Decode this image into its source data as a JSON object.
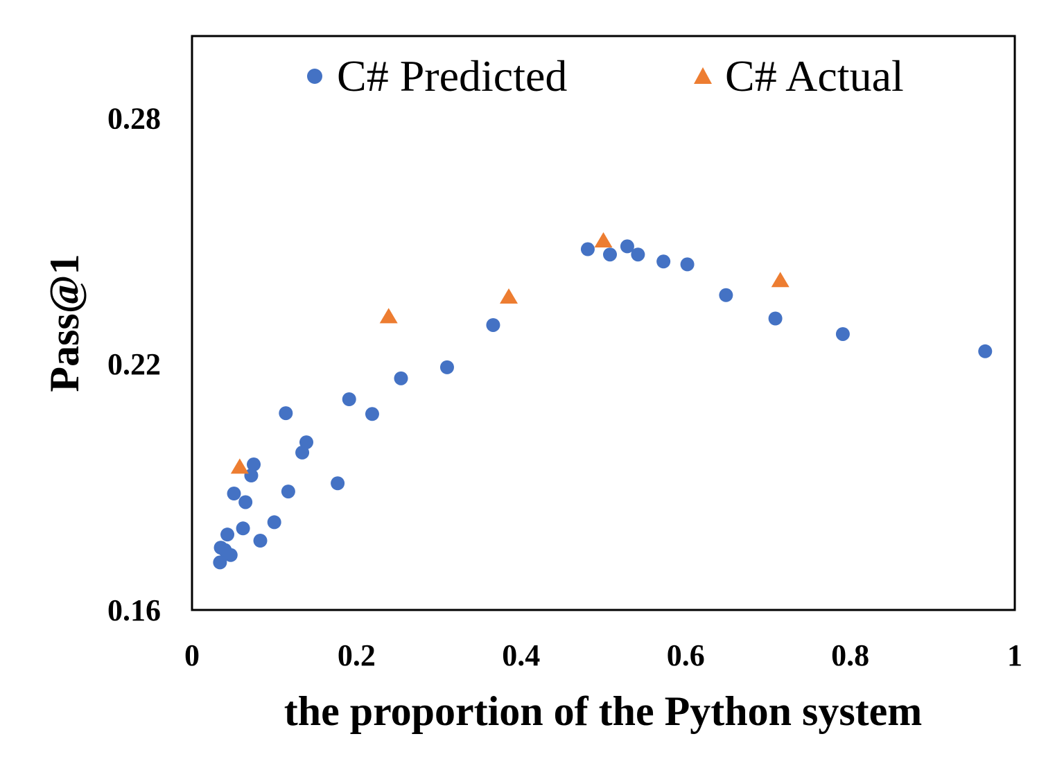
{
  "chart_data": {
    "type": "scatter",
    "title": "",
    "xlabel": "the proportion of the Python system",
    "ylabel": "Pass@1",
    "xlim": [
      0,
      1
    ],
    "ylim": [
      0.16,
      0.3
    ],
    "x_ticks": [
      {
        "value": 0,
        "label": "0"
      },
      {
        "value": 0.2,
        "label": "0.2"
      },
      {
        "value": 0.4,
        "label": "0.4"
      },
      {
        "value": 0.6,
        "label": "0.6"
      },
      {
        "value": 0.8,
        "label": "0.8"
      },
      {
        "value": 1,
        "label": "1"
      }
    ],
    "y_ticks": [
      {
        "value": 0.16,
        "label": "0.16"
      },
      {
        "value": 0.22,
        "label": "0.22"
      },
      {
        "value": 0.28,
        "label": "0.28"
      }
    ],
    "grid": false,
    "legend_position": "top",
    "series": [
      {
        "name": "C# Predicted",
        "marker": "circle",
        "color": "#4472C4",
        "points": [
          {
            "x": 0.035,
            "y": 0.1752
          },
          {
            "x": 0.04,
            "y": 0.1746
          },
          {
            "x": 0.034,
            "y": 0.1716
          },
          {
            "x": 0.047,
            "y": 0.1734
          },
          {
            "x": 0.043,
            "y": 0.1784
          },
          {
            "x": 0.051,
            "y": 0.1884
          },
          {
            "x": 0.062,
            "y": 0.1799
          },
          {
            "x": 0.065,
            "y": 0.1863
          },
          {
            "x": 0.072,
            "y": 0.1928
          },
          {
            "x": 0.075,
            "y": 0.1955
          },
          {
            "x": 0.083,
            "y": 0.1769
          },
          {
            "x": 0.1,
            "y": 0.1814
          },
          {
            "x": 0.114,
            "y": 0.208
          },
          {
            "x": 0.117,
            "y": 0.1889
          },
          {
            "x": 0.134,
            "y": 0.1984
          },
          {
            "x": 0.139,
            "y": 0.2009
          },
          {
            "x": 0.177,
            "y": 0.1909
          },
          {
            "x": 0.191,
            "y": 0.2114
          },
          {
            "x": 0.219,
            "y": 0.2078
          },
          {
            "x": 0.254,
            "y": 0.2165
          },
          {
            "x": 0.31,
            "y": 0.2192
          },
          {
            "x": 0.366,
            "y": 0.2295
          },
          {
            "x": 0.481,
            "y": 0.248
          },
          {
            "x": 0.508,
            "y": 0.2467
          },
          {
            "x": 0.529,
            "y": 0.2487
          },
          {
            "x": 0.542,
            "y": 0.2467
          },
          {
            "x": 0.573,
            "y": 0.245
          },
          {
            "x": 0.602,
            "y": 0.2443
          },
          {
            "x": 0.649,
            "y": 0.2368
          },
          {
            "x": 0.709,
            "y": 0.2311
          },
          {
            "x": 0.791,
            "y": 0.2273
          },
          {
            "x": 0.964,
            "y": 0.2231
          }
        ]
      },
      {
        "name": "C# Actual",
        "marker": "triangle",
        "color": "#ED7D31",
        "points": [
          {
            "x": 0.058,
            "y": 0.1951
          },
          {
            "x": 0.239,
            "y": 0.2318
          },
          {
            "x": 0.385,
            "y": 0.2366
          },
          {
            "x": 0.5,
            "y": 0.2503
          },
          {
            "x": 0.715,
            "y": 0.2406
          }
        ]
      }
    ]
  }
}
